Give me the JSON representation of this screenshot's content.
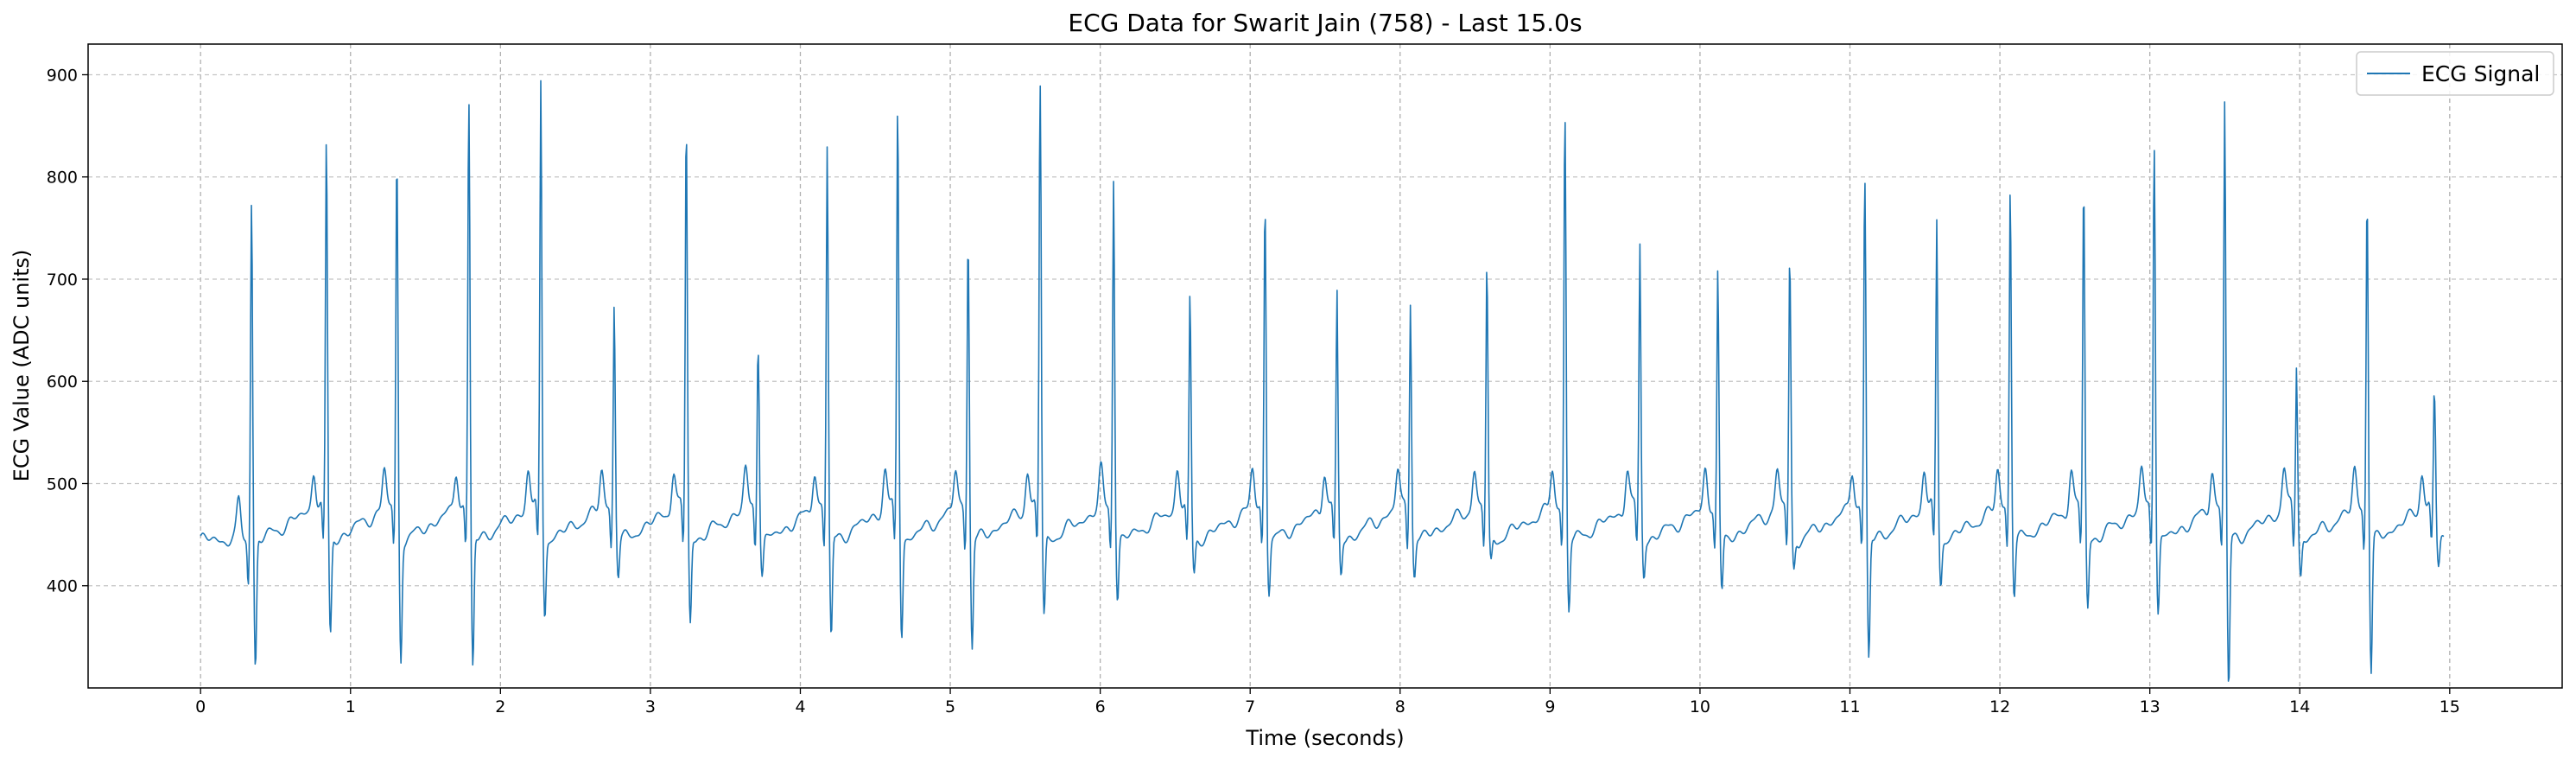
{
  "chart_data": {
    "type": "line",
    "title": "ECG Data for Swarit Jain (758) - Last 15.0s",
    "xlabel": "Time (seconds)",
    "ylabel": "ECG Value (ADC units)",
    "xlim": [
      -0.75,
      15.75
    ],
    "ylim": [
      300,
      930
    ],
    "xticks": [
      0,
      1,
      2,
      3,
      4,
      5,
      6,
      7,
      8,
      9,
      10,
      11,
      12,
      13,
      14,
      15
    ],
    "yticks": [
      400,
      500,
      600,
      700,
      800,
      900
    ],
    "grid": true,
    "legend_position": "top-right",
    "series_color": "#1f77b4",
    "series": [
      {
        "name": "ECG Signal",
        "beats": [
          {
            "t": 0.34,
            "peak": 790,
            "trough": 348
          },
          {
            "t": 0.84,
            "peak": 820,
            "trough": 380
          },
          {
            "t": 1.31,
            "peak": 816,
            "trough": 360
          },
          {
            "t": 1.79,
            "peak": 880,
            "trough": 348
          },
          {
            "t": 2.27,
            "peak": 870,
            "trough": 403
          },
          {
            "t": 2.76,
            "peak": 660,
            "trough": 440
          },
          {
            "t": 3.24,
            "peak": 850,
            "trough": 393
          },
          {
            "t": 3.72,
            "peak": 644,
            "trough": 442
          },
          {
            "t": 4.18,
            "peak": 808,
            "trough": 377
          },
          {
            "t": 4.65,
            "peak": 860,
            "trough": 383
          },
          {
            "t": 5.12,
            "peak": 740,
            "trough": 370
          },
          {
            "t": 5.6,
            "peak": 900,
            "trough": 400
          },
          {
            "t": 6.09,
            "peak": 780,
            "trough": 417
          },
          {
            "t": 6.6,
            "peak": 666,
            "trough": 440
          },
          {
            "t": 7.1,
            "peak": 775,
            "trough": 425
          },
          {
            "t": 7.58,
            "peak": 656,
            "trough": 440
          },
          {
            "t": 8.07,
            "peak": 660,
            "trough": 440
          },
          {
            "t": 8.58,
            "peak": 700,
            "trough": 450
          },
          {
            "t": 9.1,
            "peak": 864,
            "trough": 406
          },
          {
            "t": 9.6,
            "peak": 707,
            "trough": 440
          },
          {
            "t": 10.12,
            "peak": 688,
            "trough": 421
          },
          {
            "t": 10.6,
            "peak": 713,
            "trough": 445
          },
          {
            "t": 11.1,
            "peak": 803,
            "trough": 356
          },
          {
            "t": 11.58,
            "peak": 731,
            "trough": 433
          },
          {
            "t": 12.07,
            "peak": 776,
            "trough": 422
          },
          {
            "t": 12.56,
            "peak": 787,
            "trough": 409
          },
          {
            "t": 13.03,
            "peak": 845,
            "trough": 405
          },
          {
            "t": 13.5,
            "peak": 850,
            "trough": 328
          },
          {
            "t": 13.98,
            "peak": 600,
            "trough": 440
          },
          {
            "t": 14.45,
            "peak": 780,
            "trough": 345
          },
          {
            "t": 14.9,
            "peak": 590,
            "trough": 448
          }
        ]
      }
    ]
  }
}
